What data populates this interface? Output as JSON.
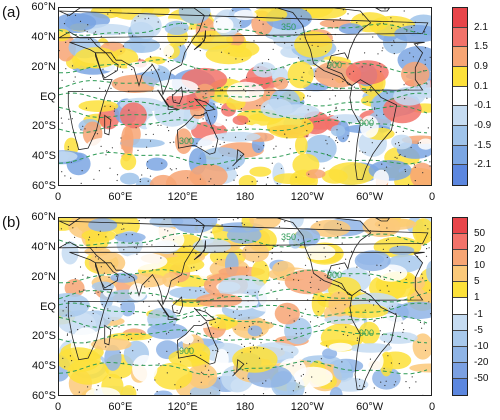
{
  "panels": [
    {
      "id": "a",
      "label": "(a)",
      "lat_ticks": [
        "60°N",
        "40°N",
        "20°N",
        "EQ",
        "20°S",
        "40°S",
        "60°S"
      ],
      "lon_ticks": [
        "0",
        "60°E",
        "120°E",
        "180",
        "120°W",
        "60°W",
        "0"
      ],
      "colorbar": {
        "labels": [
          "2.1",
          "1.5",
          "0.9",
          "0.1",
          "-0.1",
          "-0.9",
          "-1.5",
          "-2.1"
        ],
        "colors": [
          "#e8454a",
          "#f2726a",
          "#f7a574",
          "#fde13a",
          "#ffffff",
          "#c6dcf2",
          "#9fc3ea",
          "#7ba6e3",
          "#5c87df"
        ]
      },
      "contour_labels": [
        "350",
        "900",
        "900",
        "300"
      ]
    },
    {
      "id": "b",
      "label": "(b)",
      "lat_ticks": [
        "60°N",
        "40°N",
        "20°N",
        "EQ",
        "20°S",
        "40°S",
        "60°S"
      ],
      "lon_ticks": [
        "0",
        "60°E",
        "120°E",
        "180",
        "120°W",
        "60°W",
        "0"
      ],
      "colorbar": {
        "labels": [
          "50",
          "20",
          "10",
          "5",
          "1",
          "-1",
          "-5",
          "-10",
          "-20",
          "-50"
        ],
        "colors": [
          "#e8454a",
          "#f2726a",
          "#f7a574",
          "#fbc97a",
          "#fde13a",
          "#ffffff",
          "#c6dcf2",
          "#a8c9ec",
          "#8fb4e6",
          "#7ba0e2",
          "#5c87df"
        ]
      },
      "contour_labels": [
        "350",
        "900",
        "900",
        "900"
      ]
    }
  ]
}
